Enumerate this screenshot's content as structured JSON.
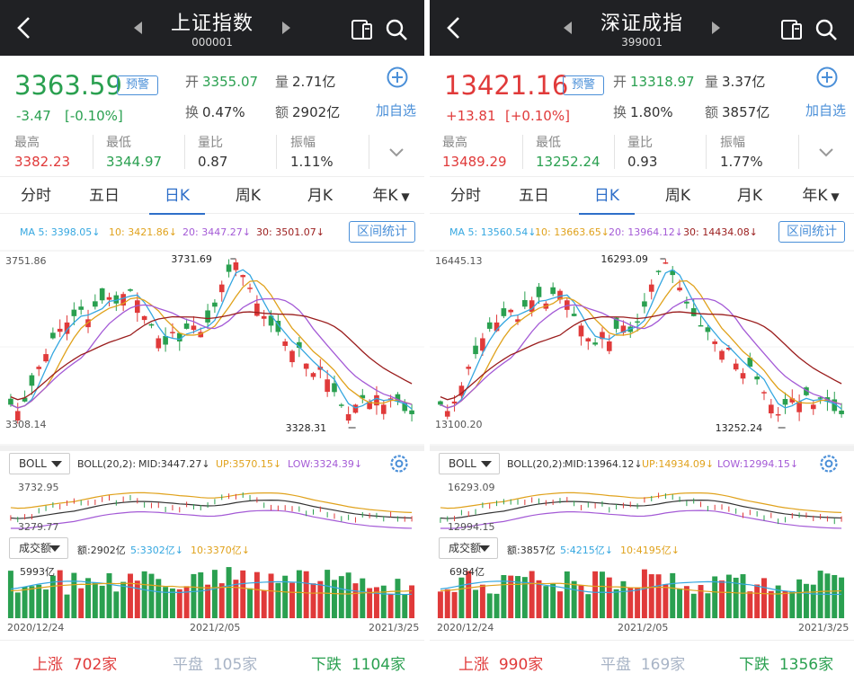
{
  "colors": {
    "up": "#e03a3a",
    "down": "#2aa050",
    "accent": "#2f6fc9",
    "ma5": "#35a7e0",
    "ma10": "#e0a21c",
    "ma20": "#a45ad6",
    "ma30": "#9a1c1c"
  },
  "panels": [
    {
      "title": "上证指数",
      "code": "000001",
      "price": "3363.59",
      "trend": "down",
      "change": "-3.47",
      "change_pct": "[-0.10%]",
      "alarm_label": "预警",
      "open_label": "开",
      "open": "3355.07",
      "open_trend": "down",
      "volume_label": "量",
      "volume": "2.71亿",
      "turnover_label": "换",
      "turnover": "0.47%",
      "amount_label": "额",
      "amount": "2902亿",
      "add_label": "加自选",
      "stats": [
        {
          "label": "最高",
          "value": "3382.23",
          "trend": "up"
        },
        {
          "label": "最低",
          "value": "3344.97",
          "trend": "down"
        },
        {
          "label": "量比",
          "value": "0.87",
          "trend": "none"
        },
        {
          "label": "振幅",
          "value": "1.11%",
          "trend": "none"
        }
      ],
      "tabs": [
        "分时",
        "五日",
        "日K",
        "周K",
        "月K",
        "年K"
      ],
      "active_tab": "日K",
      "ma": {
        "ma5": "MA 5: 3398.05↓",
        "ma10": "10: 3421.86↓",
        "ma20": "20: 3447.27↓",
        "ma30": "30: 3501.07↓"
      },
      "range_button": "区间统计",
      "axis_top": "3751.86",
      "axis_bottom": "3308.14",
      "high_marker": "3731.69",
      "low_marker": "3328.31",
      "boll_selector": "BOLL",
      "boll": {
        "params": "BOLL(20,2):",
        "mid": "MID:3447.27↓",
        "up": "UP:3570.15↓",
        "low": "LOW:3324.39↓"
      },
      "boll_axis_top": "3732.95",
      "boll_axis_bottom": "3279.77",
      "vol_selector": "成交额",
      "vol": {
        "amount": "额:2902亿",
        "v5": "5:3302亿↓",
        "v10": "10:3370亿↓"
      },
      "vol_axis": "5993亿",
      "dates": [
        "2020/12/24",
        "2021/2/05",
        "2021/3/25"
      ],
      "breadth": {
        "up_label": "上涨",
        "up_count": "702家",
        "flat_label": "平盘",
        "flat_count": "105家",
        "down_label": "下跌",
        "down_count": "1104家"
      }
    },
    {
      "title": "深证成指",
      "code": "399001",
      "price": "13421.16",
      "trend": "up",
      "change": "+13.81",
      "change_pct": "[+0.10%]",
      "alarm_label": "预警",
      "open_label": "开",
      "open": "13318.97",
      "open_trend": "down",
      "volume_label": "量",
      "volume": "3.37亿",
      "turnover_label": "换",
      "turnover": "1.80%",
      "amount_label": "额",
      "amount": "3857亿",
      "add_label": "加自选",
      "stats": [
        {
          "label": "最高",
          "value": "13489.29",
          "trend": "up"
        },
        {
          "label": "最低",
          "value": "13252.24",
          "trend": "down"
        },
        {
          "label": "量比",
          "value": "0.93",
          "trend": "none"
        },
        {
          "label": "振幅",
          "value": "1.77%",
          "trend": "none"
        }
      ],
      "tabs": [
        "分时",
        "五日",
        "日K",
        "周K",
        "月K",
        "年K"
      ],
      "active_tab": "日K",
      "ma": {
        "ma5": "MA 5: 13560.54↓",
        "ma10": "10: 13663.65↓",
        "ma20": "20: 13964.12↓",
        "ma30": "30: 14434.08↓"
      },
      "range_button": "区间统计",
      "axis_top": "16445.13",
      "axis_bottom": "13100.20",
      "high_marker": "16293.09",
      "low_marker": "13252.24",
      "boll_selector": "BOLL",
      "boll": {
        "params": "BOLL(20,2):",
        "mid": "MID:13964.12↓",
        "up": "UP:14934.09↓",
        "low": "LOW:12994.15↓"
      },
      "boll_axis_top": "16293.09",
      "boll_axis_bottom": "12994.15",
      "vol_selector": "成交额",
      "vol": {
        "amount": "额:3857亿",
        "v5": "5:4215亿↓",
        "v10": "10:4195亿↓"
      },
      "vol_axis": "6984亿",
      "dates": [
        "2020/12/24",
        "2021/2/05",
        "2021/3/25"
      ],
      "breadth": {
        "up_label": "上涨",
        "up_count": "990家",
        "flat_label": "平盘",
        "flat_count": "169家",
        "down_label": "下跌",
        "down_count": "1356家"
      }
    }
  ]
}
